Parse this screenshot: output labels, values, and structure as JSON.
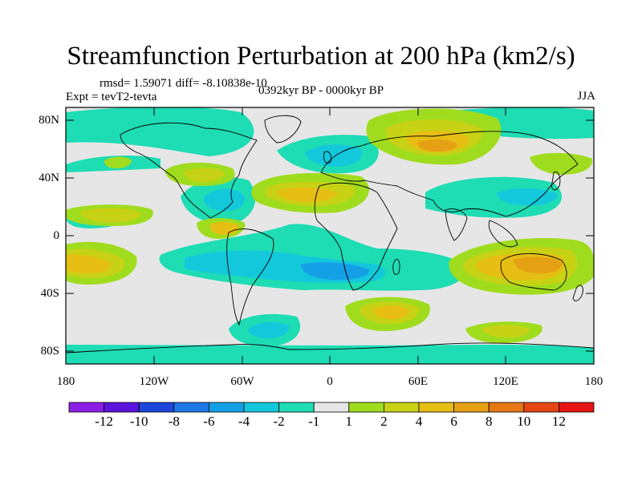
{
  "title": "Streamfunction Perturbation at 200 hPa (km2/s)",
  "stats_text": "rmsd= 1.59071 diff= -8.10838e-10",
  "experiment_text": "Expt = tevT2-tevta",
  "period_text": "0392kyr BP - 0000kyr BP",
  "season_text": "JJA",
  "lat_labels": [
    "80N",
    "40N",
    "0",
    "40S",
    "80S"
  ],
  "lon_labels": [
    "180",
    "120W",
    "60W",
    "0",
    "60E",
    "120E",
    "180"
  ],
  "colorbar": {
    "labels": [
      "-12",
      "-10",
      "-8",
      "-6",
      "-4",
      "-2",
      "-1",
      "1",
      "2",
      "4",
      "6",
      "8",
      "10",
      "12"
    ],
    "colors": [
      "#8c1ee6",
      "#5a14dc",
      "#1e46dc",
      "#1e78e6",
      "#14a0e6",
      "#14c8dc",
      "#1edcb4",
      "#e6e6e6",
      "#a0dc1e",
      "#c8d214",
      "#e6be14",
      "#e6a014",
      "#e67814",
      "#e64614",
      "#e61414"
    ]
  },
  "fill_colors": {
    "background": "#e6e6e6",
    "neg1": "#1edcb4",
    "neg2": "#14c8dc",
    "neg4": "#14a0e6",
    "pos1": "#a0dc1e",
    "pos2": "#c8d214",
    "pos4": "#e6be14",
    "pos6": "#e6a014"
  }
}
